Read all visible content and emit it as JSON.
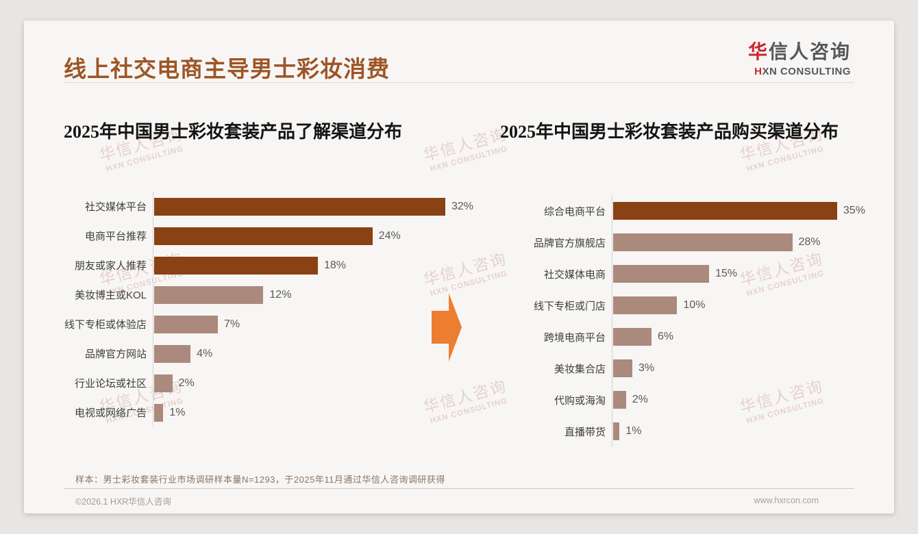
{
  "page": {
    "title": "线上社交电商主导男士彩妆消费",
    "logo": {
      "zh_accent": "华",
      "zh_rest": "信人咨询",
      "en_accent": "H",
      "en_rest": "XN CONSULTING"
    },
    "watermark": {
      "zh": "华信人咨询",
      "en": "HXN CONSULTING"
    },
    "sample_note": "样本：男士彩妆套装行业市场调研样本量N=1293，于2025年11月通过华信人咨询调研获得",
    "footer": {
      "copyright": "©2026.1 HXR华信人咨询",
      "website": "www.hxrcon.com"
    }
  },
  "colors": {
    "title_brown": "#9d5526",
    "bar_dark": "#8a4113",
    "bar_light": "#ab897c",
    "arrow_orange": "#ed7d31",
    "logo_red": "#c9252c",
    "logo_gray": "#57585b",
    "watermark_pink": "#be7676"
  },
  "chart_data": [
    {
      "type": "bar",
      "orientation": "horizontal",
      "title": "2025年中国男士彩妆套装产品了解渠道分布",
      "categories": [
        "社交媒体平台",
        "电商平台推荐",
        "朋友或家人推荐",
        "美妆博主或KOL",
        "线下专柜或体验店",
        "品牌官方网站",
        "行业论坛或社区",
        "电视或网络广告"
      ],
      "values": [
        32,
        24,
        18,
        12,
        7,
        4,
        2,
        1
      ],
      "value_labels": [
        "32%",
        "24%",
        "18%",
        "12%",
        "7%",
        "4%",
        "2%",
        "1%"
      ],
      "unit": "percent",
      "xlim": [
        0,
        35
      ],
      "grid": false,
      "legend": false,
      "highlight_first_n": 3
    },
    {
      "type": "bar",
      "orientation": "horizontal",
      "title": "2025年中国男士彩妆套装产品购买渠道分布",
      "categories": [
        "综合电商平台",
        "品牌官方旗舰店",
        "社交媒体电商",
        "线下专柜或门店",
        "跨境电商平台",
        "美妆集合店",
        "代购或海淘",
        "直播带货"
      ],
      "values": [
        35,
        28,
        15,
        10,
        6,
        3,
        2,
        1
      ],
      "value_labels": [
        "35%",
        "28%",
        "15%",
        "10%",
        "6%",
        "3%",
        "2%",
        "1%"
      ],
      "unit": "percent",
      "xlim": [
        0,
        40
      ],
      "grid": false,
      "legend": false,
      "highlight_first_n": 1
    }
  ]
}
